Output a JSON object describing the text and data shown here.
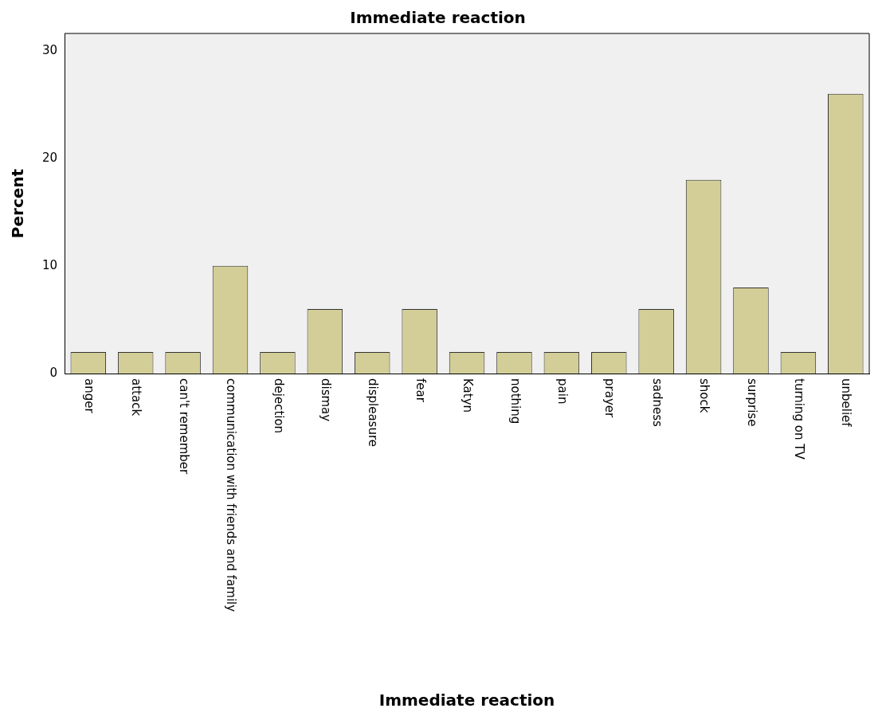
{
  "chart_data": {
    "type": "bar",
    "title": "Immediate reaction",
    "xlabel": "Immediate reaction",
    "ylabel": "Percent",
    "categories": [
      "anger",
      "attack",
      "can't remember",
      "communication with friends and family",
      "dejection",
      "dismay",
      "displeasure",
      "fear",
      "Katyn",
      "nothing",
      "pain",
      "prayer",
      "sadness",
      "shock",
      "surprise",
      "turning on TV",
      "unbelief"
    ],
    "values": [
      2,
      2,
      2,
      10,
      2,
      6,
      2,
      6,
      2,
      2,
      2,
      2,
      6,
      18,
      8,
      2,
      26
    ],
    "color": "#d3ce97",
    "ylim": [
      0,
      31.6
    ],
    "yticks": [
      0,
      10,
      20,
      30
    ],
    "grid": false,
    "legend": false
  }
}
